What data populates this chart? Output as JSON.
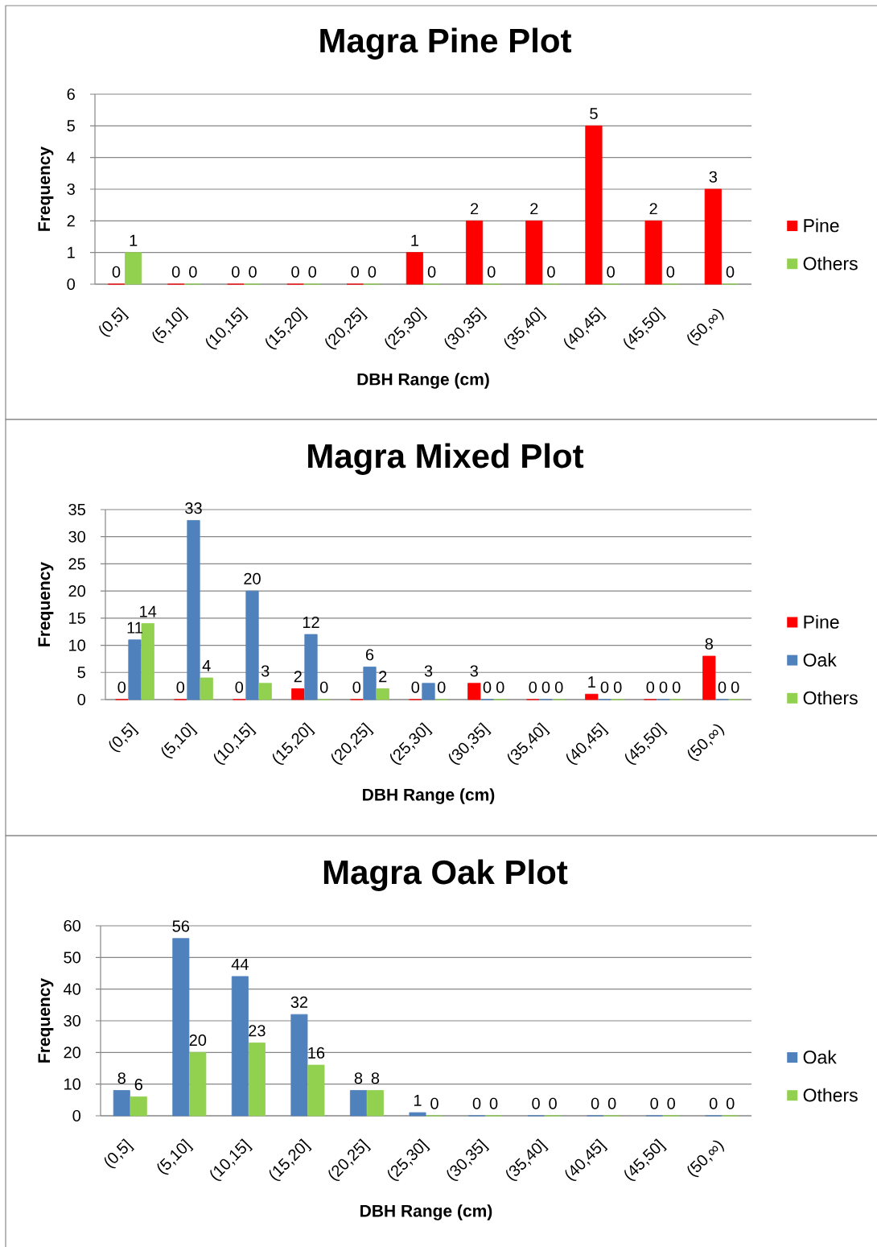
{
  "chart_data": [
    {
      "type": "bar",
      "title": "Magra Pine Plot",
      "xlabel": "DBH Range (cm)",
      "ylabel": "Frequency",
      "categories": [
        "(0,5]",
        "(5,10]",
        "(10,15]",
        "(15,20]",
        "(20,25]",
        "(25,30]",
        "(30,35]",
        "(35,40]",
        "(40,45]",
        "(45,50]",
        "(50,∞)"
      ],
      "series": [
        {
          "name": "Pine",
          "color": "#ff0000",
          "values": [
            0,
            0,
            0,
            0,
            0,
            1,
            2,
            2,
            5,
            2,
            3
          ]
        },
        {
          "name": "Others",
          "color": "#92d050",
          "values": [
            1,
            0,
            0,
            0,
            0,
            0,
            0,
            0,
            0,
            0,
            0
          ]
        }
      ],
      "ylim": [
        0,
        6
      ],
      "yticks": [
        0,
        1,
        2,
        3,
        4,
        5,
        6
      ],
      "grid": "y",
      "legend": "right",
      "data_labels": true
    },
    {
      "type": "bar",
      "title": "Magra Mixed Plot",
      "xlabel": "DBH Range (cm)",
      "ylabel": "Frequency",
      "categories": [
        "(0,5]",
        "(5,10]",
        "(10,15]",
        "(15,20]",
        "(20,25]",
        "(25,30]",
        "(30,35]",
        "(35,40]",
        "(40,45]",
        "(45,50]",
        "(50,∞)"
      ],
      "series": [
        {
          "name": "Pine",
          "color": "#ff0000",
          "values": [
            0,
            0,
            0,
            2,
            0,
            0,
            3,
            0,
            1,
            0,
            8
          ]
        },
        {
          "name": "Oak",
          "color": "#4f81bd",
          "values": [
            11,
            33,
            20,
            12,
            6,
            3,
            0,
            0,
            0,
            0,
            0
          ]
        },
        {
          "name": "Others",
          "color": "#92d050",
          "values": [
            14,
            4,
            3,
            0,
            2,
            0,
            0,
            0,
            0,
            0,
            0
          ]
        }
      ],
      "ylim": [
        0,
        35
      ],
      "yticks": [
        0,
        5,
        10,
        15,
        20,
        25,
        30,
        35
      ],
      "grid": "y",
      "legend": "right",
      "data_labels": true
    },
    {
      "type": "bar",
      "title": "Magra Oak Plot",
      "xlabel": "DBH Range (cm)",
      "ylabel": "Frequency",
      "categories": [
        "(0,5]",
        "(5,10]",
        "(10,15]",
        "(15,20]",
        "(20,25]",
        "(25,30]",
        "(30,35]",
        "(35,40]",
        "(40,45]",
        "(45,50]",
        "(50,∞)"
      ],
      "series": [
        {
          "name": "Oak",
          "color": "#4f81bd",
          "values": [
            8,
            56,
            44,
            32,
            8,
            1,
            0,
            0,
            0,
            0,
            0
          ]
        },
        {
          "name": "Others",
          "color": "#92d050",
          "values": [
            6,
            20,
            23,
            16,
            8,
            0,
            0,
            0,
            0,
            0,
            0
          ]
        }
      ],
      "ylim": [
        0,
        60
      ],
      "yticks": [
        0,
        10,
        20,
        30,
        40,
        50,
        60
      ],
      "grid": "y",
      "legend": "right",
      "data_labels": true
    }
  ]
}
